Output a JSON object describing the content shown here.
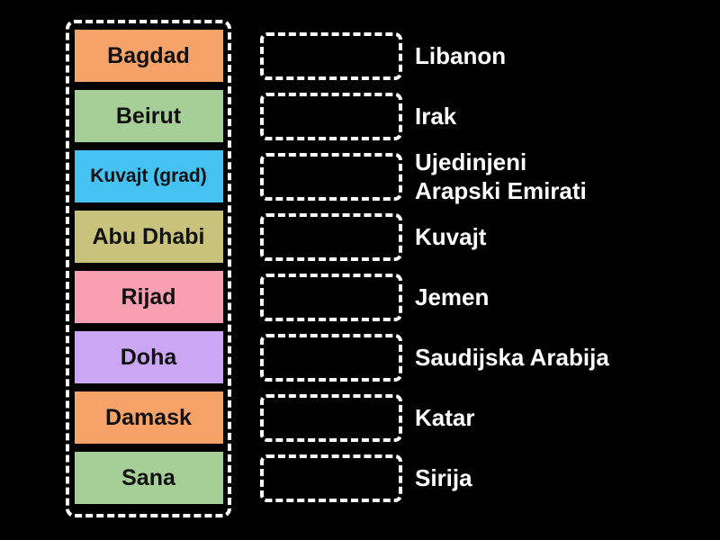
{
  "page": {
    "background_color": "#000000"
  },
  "match_game": {
    "tiles_group": {
      "border_color": "#FFFFFF",
      "text_color": "#111111",
      "tiles": [
        {
          "label": "Bagdad",
          "color": "#F5A369"
        },
        {
          "label": "Beirut",
          "color": "#A6CE97"
        },
        {
          "label": "Kuvajt (grad)",
          "color": "#45C1F2"
        },
        {
          "label": "Abu Dhabi",
          "color": "#C9C27C"
        },
        {
          "label": "Rijad",
          "color": "#F99FB2"
        },
        {
          "label": "Doha",
          "color": "#CBA6F5"
        },
        {
          "label": "Damask",
          "color": "#F5A369"
        },
        {
          "label": "Sana",
          "color": "#A6CE97"
        }
      ]
    },
    "slots": {
      "border_color": "#FFFFFF",
      "label_color": "#FFFFFF",
      "items": [
        {
          "label": "Libanon"
        },
        {
          "label": "Irak"
        },
        {
          "label": "Ujedinjeni\nArapski Emirati"
        },
        {
          "label": "Kuvajt"
        },
        {
          "label": "Jemen"
        },
        {
          "label": "Saudijska Arabija"
        },
        {
          "label": "Katar"
        },
        {
          "label": "Sirija"
        }
      ]
    }
  }
}
